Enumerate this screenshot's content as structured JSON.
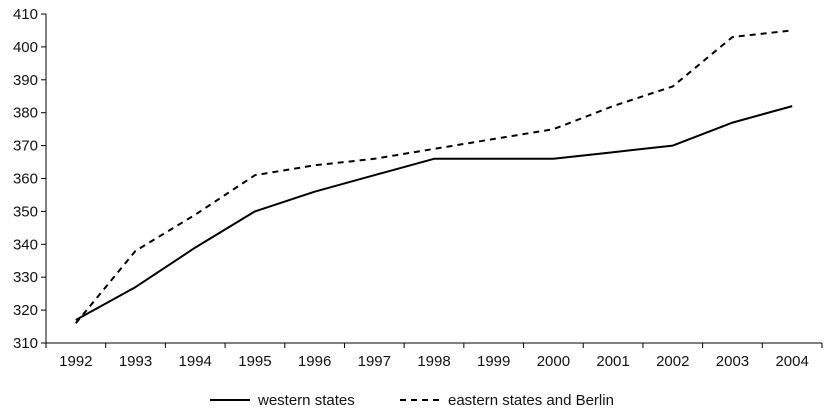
{
  "chart_data": {
    "type": "line",
    "title": "",
    "xlabel": "",
    "ylabel": "",
    "categories": [
      "1992",
      "1993",
      "1994",
      "1995",
      "1996",
      "1997",
      "1998",
      "1999",
      "2000",
      "2001",
      "2002",
      "2003",
      "2004"
    ],
    "ylim": [
      310,
      410
    ],
    "yticks": [
      310,
      320,
      330,
      340,
      350,
      360,
      370,
      380,
      390,
      400,
      410
    ],
    "grid": false,
    "legend_position": "bottom",
    "series": [
      {
        "name": "western states",
        "line_style": "solid",
        "color": "#000000",
        "values": [
          317,
          327,
          339,
          350,
          356,
          361,
          366,
          366,
          366,
          368,
          370,
          377,
          382
        ]
      },
      {
        "name": "eastern states and Berlin",
        "line_style": "dashed",
        "color": "#000000",
        "values": [
          316,
          338,
          349,
          361,
          364,
          366,
          369,
          372,
          375,
          382,
          388,
          403,
          405
        ]
      }
    ]
  }
}
